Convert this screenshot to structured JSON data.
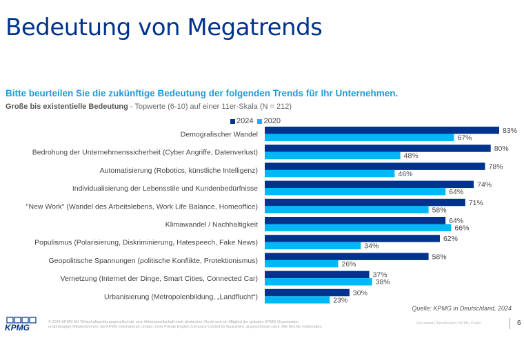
{
  "header": {
    "title": "Bedeutung von Megatrends",
    "question": "Bitte beurteilen Sie die zukünftige Bedeutung der folgenden Trends für Ihr Unternehmen.",
    "subtitle_bold": "Große bis existentielle Bedeutung",
    "subtitle_rest": " - Topwerte (6-10) auf einer 11er-Skala (N = 212)"
  },
  "colors": {
    "series_2024": "#00338d",
    "series_2020": "#00b8f5",
    "title": "#00338d",
    "question": "#1e9bd7"
  },
  "chart_data": {
    "type": "bar",
    "orientation": "horizontal",
    "title": "Bitte beurteilen Sie die zukünftige Bedeutung der folgenden Trends für Ihr Unternehmen.",
    "xlabel": "",
    "ylabel": "",
    "unit": "%",
    "xlim": [
      0,
      100
    ],
    "grid": false,
    "legend_position": "top",
    "categories": [
      "Demografischer Wandel",
      "Bedrohung der Unternehmenssicherheit (Cyber Angriffe, Datenverlust)",
      "Automatisierung (Robotics, künstliche Intelligenz)",
      "Individualisierung der Lebensstile und Kundenbedürfnisse",
      "\"New Work\" (Wandel des Arbeitslebens, Work Life Balance, Homeoffice)",
      "Klimawandel / Nachhaltigkeit",
      "Populismus (Polarisierung, Diskriminierung, Hatespeech, Fake News)",
      "Geopolitische Spannungen (politische Konflikte, Protektionismus)",
      "Vernetzung (Internet der Dinge, Smart Cities, Connected Car)",
      "Urbanisierung (Metropolenbildung, „Landflucht“)"
    ],
    "series": [
      {
        "name": "2024",
        "values": [
          83,
          80,
          78,
          74,
          71,
          64,
          62,
          58,
          37,
          30
        ]
      },
      {
        "name": "2020",
        "values": [
          67,
          48,
          46,
          64,
          58,
          66,
          34,
          26,
          38,
          23
        ]
      }
    ]
  },
  "footer": {
    "source": "Quelle: KPMG in Deutschland, 2024",
    "logo_text": "KPMG",
    "legal_line1": "© 2024 KPMG AG Wirtschaftsprüfungsgesellschaft, eine Aktiengesellschaft nach deutschem Recht und ein Mitglied der globalen KPMG-Organisation",
    "legal_line2": "unabhängiger Mitgliedsfirmen, die KPMG International Limited, einer Private English Company Limited by Guarantee, angeschlossen sind. Alle Rechte vorbehalten.",
    "classification": "Document Classification: KPMG Public",
    "page_number": "6"
  }
}
